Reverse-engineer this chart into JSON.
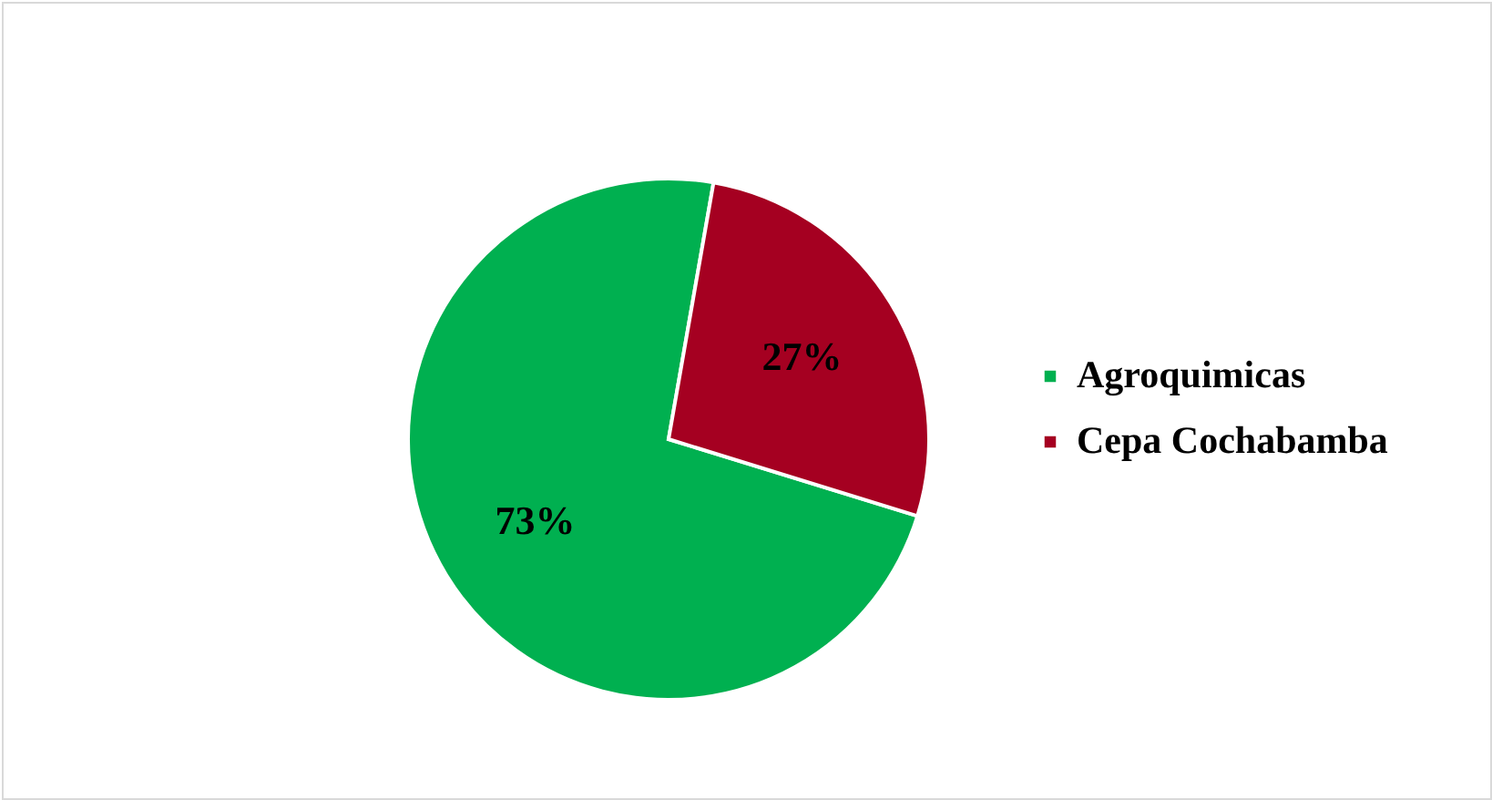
{
  "chart_data": {
    "type": "pie",
    "categories": [
      "Agroquimicas",
      "Cepa Cochabamba"
    ],
    "values": [
      73,
      27
    ],
    "colors": [
      "#00b050",
      "#a50021"
    ],
    "value_labels": [
      "73%",
      "27%"
    ],
    "legend": "right"
  }
}
